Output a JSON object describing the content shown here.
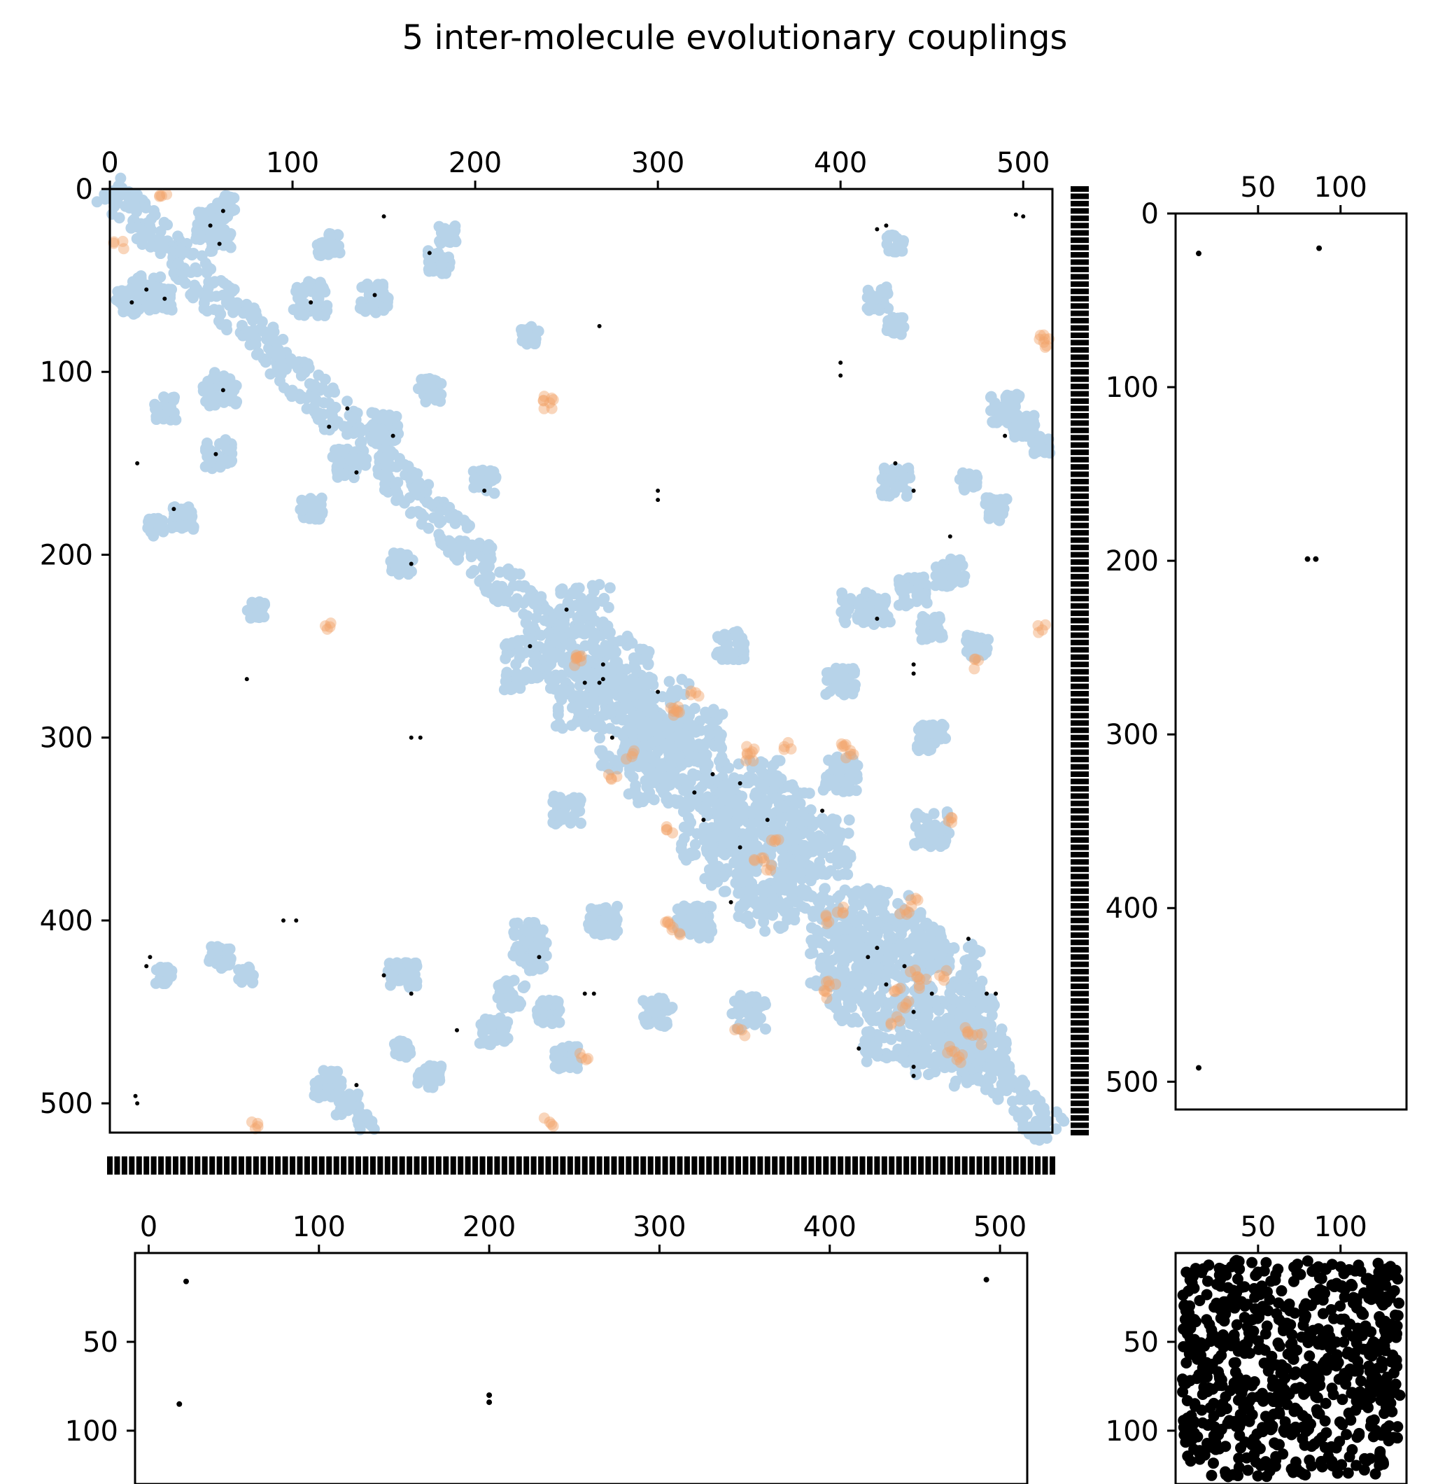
{
  "chart_data": [
    {
      "panel": "main",
      "type": "scatter",
      "title": "5 inter-molecule evolutionary couplings",
      "x_ticks": [
        "0",
        "100",
        "200",
        "300",
        "400",
        "500"
      ],
      "y_ticks": [
        "0",
        "100",
        "200",
        "300",
        "400",
        "500"
      ],
      "xlim": [
        0,
        516
      ],
      "ylim": [
        516,
        0
      ],
      "x_axis_position": "top",
      "colors": {
        "contacts": "#b7d3e9",
        "inter_contacts": "#f2a36b",
        "couplings": "#000000"
      },
      "contact_diagonal_band": {
        "from": 0,
        "to": 516,
        "halfwidth": 7
      },
      "contact_clusters": [
        [
          55,
          20,
          10
        ],
        [
          20,
          55,
          10
        ],
        [
          62,
          10,
          8
        ],
        [
          10,
          62,
          8
        ],
        [
          28,
          60,
          8
        ],
        [
          60,
          28,
          8
        ],
        [
          110,
          60,
          12
        ],
        [
          60,
          110,
          12
        ],
        [
          120,
          30,
          8
        ],
        [
          30,
          120,
          8
        ],
        [
          145,
          60,
          10
        ],
        [
          60,
          145,
          10
        ],
        [
          180,
          40,
          8
        ],
        [
          40,
          180,
          8
        ],
        [
          150,
          130,
          10
        ],
        [
          130,
          150,
          10
        ],
        [
          175,
          110,
          8
        ],
        [
          110,
          175,
          8
        ],
        [
          40,
          180,
          6
        ],
        [
          185,
          25,
          6
        ],
        [
          25,
          185,
          6
        ],
        [
          205,
          160,
          8
        ],
        [
          160,
          205,
          8
        ],
        [
          260,
          230,
          18
        ],
        [
          230,
          260,
          18
        ],
        [
          280,
          260,
          20
        ],
        [
          260,
          280,
          20
        ],
        [
          300,
          285,
          22
        ],
        [
          285,
          300,
          22
        ],
        [
          320,
          300,
          20
        ],
        [
          300,
          320,
          20
        ],
        [
          350,
          330,
          22
        ],
        [
          330,
          350,
          22
        ],
        [
          370,
          340,
          18
        ],
        [
          340,
          370,
          18
        ],
        [
          390,
          360,
          20
        ],
        [
          360,
          390,
          20
        ],
        [
          420,
          400,
          22
        ],
        [
          400,
          420,
          22
        ],
        [
          440,
          410,
          20
        ],
        [
          410,
          440,
          20
        ],
        [
          460,
          430,
          22
        ],
        [
          430,
          460,
          22
        ],
        [
          470,
          455,
          18
        ],
        [
          455,
          470,
          18
        ],
        [
          480,
          470,
          14
        ],
        [
          470,
          480,
          14
        ],
        [
          230,
          420,
          10
        ],
        [
          420,
          230,
          10
        ],
        [
          240,
          450,
          8
        ],
        [
          450,
          240,
          8
        ],
        [
          160,
          430,
          10
        ],
        [
          430,
          160,
          10
        ],
        [
          30,
          430,
          6
        ],
        [
          430,
          30,
          6
        ],
        [
          75,
          430,
          6
        ],
        [
          430,
          75,
          6
        ],
        [
          120,
          490,
          10
        ],
        [
          490,
          120,
          10
        ],
        [
          175,
          485,
          8
        ],
        [
          485,
          175,
          8
        ],
        [
          320,
          400,
          12
        ],
        [
          400,
          320,
          12
        ],
        [
          270,
          400,
          10
        ],
        [
          400,
          270,
          10
        ],
        [
          350,
          450,
          12
        ],
        [
          450,
          350,
          12
        ],
        [
          300,
          450,
          10
        ],
        [
          450,
          300,
          10
        ],
        [
          410,
          230,
          12
        ],
        [
          230,
          410,
          12
        ],
        [
          440,
          220,
          10
        ],
        [
          220,
          440,
          10
        ],
        [
          460,
          210,
          10
        ],
        [
          210,
          460,
          10
        ],
        [
          475,
          250,
          8
        ],
        [
          250,
          475,
          8
        ],
        [
          500,
          130,
          8
        ],
        [
          130,
          500,
          8
        ],
        [
          420,
          60,
          8
        ],
        [
          60,
          420,
          8
        ],
        [
          510,
          140,
          6
        ],
        [
          140,
          510,
          6
        ],
        [
          340,
          250,
          10
        ],
        [
          250,
          340,
          10
        ],
        [
          80,
          230,
          6
        ],
        [
          230,
          80,
          6
        ],
        [
          470,
          160,
          6
        ],
        [
          160,
          470,
          6
        ]
      ],
      "inter_contacts": [
        [
          30,
          5
        ],
        [
          5,
          30
        ],
        [
          240,
          118
        ],
        [
          118,
          240
        ],
        [
          512,
          80
        ],
        [
          80,
          512
        ],
        [
          240,
          510
        ],
        [
          510,
          240
        ],
        [
          258,
          255
        ],
        [
          255,
          258
        ],
        [
          285,
          310
        ],
        [
          310,
          285
        ],
        [
          310,
          285
        ],
        [
          350,
          307
        ],
        [
          307,
          350
        ],
        [
          305,
          400
        ],
        [
          400,
          305
        ],
        [
          350,
          310
        ],
        [
          365,
          355
        ],
        [
          355,
          365
        ],
        [
          395,
          400
        ],
        [
          400,
          395
        ],
        [
          405,
          310
        ],
        [
          310,
          405
        ],
        [
          430,
          440
        ],
        [
          440,
          430
        ],
        [
          435,
          445
        ],
        [
          445,
          435
        ],
        [
          455,
          430
        ],
        [
          430,
          455
        ],
        [
          460,
          470
        ],
        [
          470,
          460
        ],
        [
          465,
          475
        ],
        [
          475,
          465
        ],
        [
          390,
          440
        ],
        [
          440,
          390
        ],
        [
          435,
          395
        ],
        [
          395,
          435
        ],
        [
          345,
          460
        ],
        [
          460,
          345
        ],
        [
          370,
          305
        ],
        [
          360,
          370
        ],
        [
          240,
          115
        ],
        [
          260,
          475
        ],
        [
          475,
          260
        ],
        [
          320,
          275
        ],
        [
          275,
          320
        ],
        [
          510,
          85
        ]
      ],
      "coupling_points": [
        [
          20,
          55
        ],
        [
          55,
          20
        ],
        [
          62,
          12
        ],
        [
          12,
          62
        ],
        [
          30,
          60
        ],
        [
          60,
          30
        ],
        [
          110,
          62
        ],
        [
          62,
          110
        ],
        [
          145,
          58
        ],
        [
          58,
          145
        ],
        [
          175,
          35
        ],
        [
          35,
          175
        ],
        [
          120,
          130
        ],
        [
          130,
          120
        ],
        [
          155,
          135
        ],
        [
          135,
          155
        ],
        [
          205,
          165
        ],
        [
          165,
          205
        ],
        [
          250,
          230
        ],
        [
          230,
          250
        ],
        [
          268,
          270
        ],
        [
          270,
          268
        ],
        [
          75,
          268
        ],
        [
          268,
          75
        ],
        [
          270,
          260
        ],
        [
          260,
          270
        ],
        [
          300,
          275
        ],
        [
          275,
          300
        ],
        [
          300,
          165
        ],
        [
          165,
          300
        ],
        [
          170,
          300
        ],
        [
          300,
          170
        ],
        [
          320,
          330
        ],
        [
          330,
          320
        ],
        [
          345,
          325
        ],
        [
          325,
          345
        ],
        [
          360,
          345
        ],
        [
          345,
          360
        ],
        [
          390,
          340
        ],
        [
          340,
          390
        ],
        [
          400,
          95
        ],
        [
          95,
          400
        ],
        [
          102,
          400
        ],
        [
          400,
          102
        ],
        [
          430,
          150
        ],
        [
          150,
          430
        ],
        [
          425,
          20
        ],
        [
          20,
          425
        ],
        [
          440,
          165
        ],
        [
          165,
          440
        ],
        [
          460,
          190
        ],
        [
          190,
          460
        ],
        [
          235,
          420
        ],
        [
          420,
          235
        ],
        [
          265,
          440
        ],
        [
          440,
          265
        ],
        [
          425,
          435
        ],
        [
          435,
          425
        ],
        [
          440,
          450
        ],
        [
          450,
          440
        ],
        [
          480,
          440
        ],
        [
          440,
          480
        ],
        [
          470,
          410
        ],
        [
          410,
          470
        ],
        [
          485,
          440
        ],
        [
          440,
          485
        ],
        [
          500,
          15
        ],
        [
          15,
          500
        ],
        [
          496,
          14
        ],
        [
          14,
          496
        ],
        [
          135,
          490
        ],
        [
          490,
          135
        ],
        [
          150,
          15
        ],
        [
          15,
          150
        ],
        [
          420,
          22
        ],
        [
          22,
          420
        ],
        [
          440,
          260
        ],
        [
          260,
          440
        ],
        [
          415,
          420
        ],
        [
          420,
          415
        ]
      ]
    },
    {
      "panel": "right",
      "type": "scatter",
      "x_ticks": [
        "50",
        "100"
      ],
      "y_ticks": [
        "0",
        "100",
        "200",
        "300",
        "400",
        "500"
      ],
      "xlim": [
        0,
        140
      ],
      "ylim": [
        516,
        0
      ],
      "x_axis_position": "top",
      "points": [
        [
          14,
          23
        ],
        [
          87,
          20
        ],
        [
          80,
          199
        ],
        [
          85,
          199
        ],
        [
          14,
          492
        ]
      ]
    },
    {
      "panel": "bottom",
      "type": "scatter",
      "x_ticks": [
        "0",
        "100",
        "200",
        "300",
        "400",
        "500"
      ],
      "y_ticks": [
        "50",
        "100"
      ],
      "xlim": [
        -8,
        516
      ],
      "ylim": [
        130,
        0
      ],
      "points": [
        [
          22,
          16
        ],
        [
          18,
          85
        ],
        [
          200,
          80
        ],
        [
          200,
          84
        ],
        [
          492,
          15
        ]
      ]
    },
    {
      "panel": "corner",
      "type": "scatter",
      "x_ticks": [
        "50",
        "100"
      ],
      "y_ticks": [
        "50",
        "100"
      ],
      "xlim": [
        0,
        140
      ],
      "ylim": [
        130,
        0
      ],
      "note": "dense contact map of the second molecule"
    }
  ]
}
